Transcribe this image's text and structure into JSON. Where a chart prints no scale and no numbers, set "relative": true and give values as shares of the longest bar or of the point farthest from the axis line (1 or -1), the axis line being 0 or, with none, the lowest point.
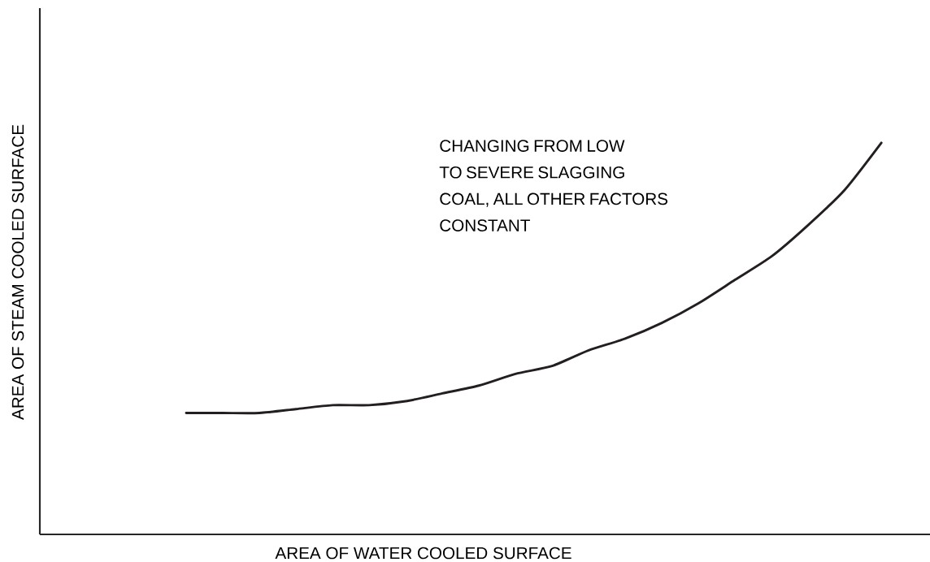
{
  "chart_data": {
    "type": "line",
    "relative": true,
    "xlabel": "AREA OF WATER COOLED SURFACE",
    "ylabel": "AREA OF STEAM COOLED SURFACE",
    "categories": [
      null,
      null,
      null,
      null,
      null,
      null,
      null,
      null,
      null,
      null,
      null,
      null,
      null,
      null,
      null,
      null,
      null,
      null,
      null,
      null,
      null,
      null,
      null,
      null
    ],
    "series": [
      {
        "color": "#231f20",
        "values": [
          null,
          null,
          null,
          null,
          0.31,
          0.31,
          0.31,
          0.32,
          0.33,
          0.33,
          0.34,
          0.36,
          0.38,
          0.41,
          0.43,
          0.47,
          0.5,
          0.54,
          0.59,
          0.65,
          0.71,
          0.79,
          0.88,
          1.0
        ]
      }
    ],
    "annotations": [
      "CHANGING FROM LOW TO SEVERE SLAGGING COAL, ALL OTHER FACTORS CONSTANT"
    ],
    "marker": "none",
    "line_style": "solid"
  }
}
